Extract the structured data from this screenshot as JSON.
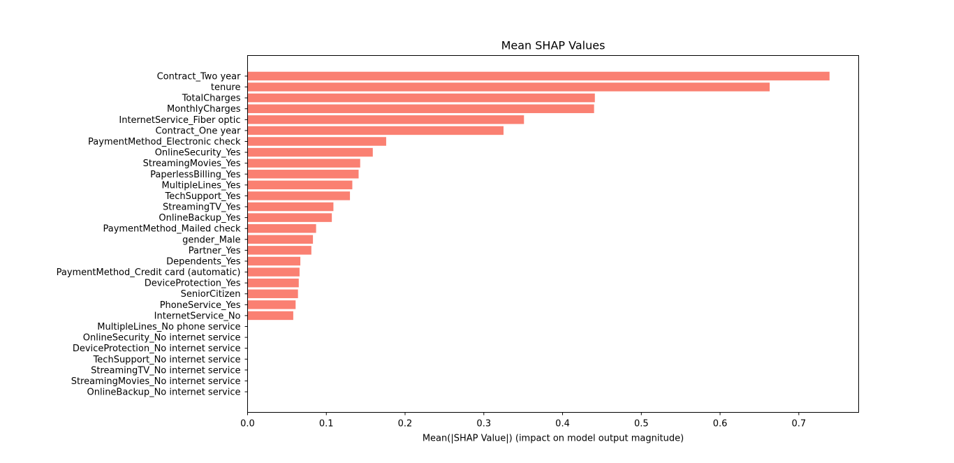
{
  "chart_data": {
    "type": "bar",
    "orientation": "horizontal",
    "title": "Mean SHAP Values",
    "xlabel": "Mean(|SHAP Value|) (impact on model output magnitude)",
    "ylabel": "",
    "xlim": [
      0,
      0.776
    ],
    "xticks": [
      0.0,
      0.1,
      0.2,
      0.3,
      0.4,
      0.5,
      0.6,
      0.7
    ],
    "xtick_labels": [
      "0.0",
      "0.1",
      "0.2",
      "0.3",
      "0.4",
      "0.5",
      "0.6",
      "0.7"
    ],
    "bar_color": "#fa8072",
    "grid": false,
    "legend": "none",
    "categories": [
      "Contract_Two year",
      "tenure",
      "TotalCharges",
      "MonthlyCharges",
      "InternetService_Fiber optic",
      "Contract_One year",
      "PaymentMethod_Electronic check",
      "OnlineSecurity_Yes",
      "StreamingMovies_Yes",
      "PaperlessBilling_Yes",
      "MultipleLines_Yes",
      "TechSupport_Yes",
      "StreamingTV_Yes",
      "OnlineBackup_Yes",
      "PaymentMethod_Mailed check",
      "gender_Male",
      "Partner_Yes",
      "Dependents_Yes",
      "PaymentMethod_Credit card (automatic)",
      "DeviceProtection_Yes",
      "SeniorCitizen",
      "PhoneService_Yes",
      "InternetService_No",
      "MultipleLines_No phone service",
      "OnlineSecurity_No internet service",
      "DeviceProtection_No internet service",
      "TechSupport_No internet service",
      "StreamingTV_No internet service",
      "StreamingMovies_No internet service",
      "OnlineBackup_No internet service"
    ],
    "values": [
      0.739,
      0.663,
      0.441,
      0.44,
      0.351,
      0.325,
      0.176,
      0.159,
      0.143,
      0.141,
      0.133,
      0.13,
      0.109,
      0.107,
      0.087,
      0.083,
      0.081,
      0.067,
      0.066,
      0.065,
      0.064,
      0.061,
      0.058,
      0.0,
      0.0,
      0.0,
      0.0,
      0.0,
      0.0,
      0.0
    ]
  }
}
